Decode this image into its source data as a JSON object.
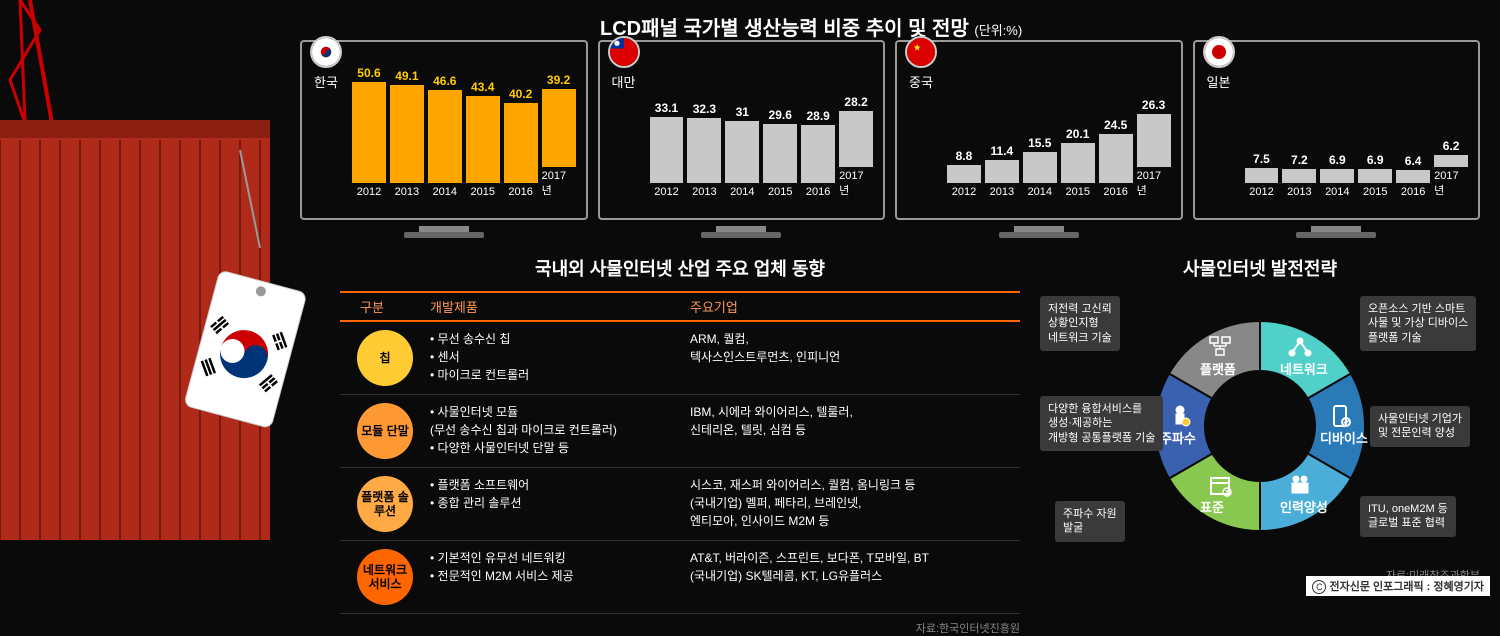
{
  "main_title": "LCD패널 국가별 생산능력 비중 추이 및 전망",
  "main_title_unit": "(단위:%)",
  "charts": [
    {
      "country": "한국",
      "flag": "kr",
      "years": [
        "2012",
        "2013",
        "2014",
        "2015",
        "2016",
        "2017년"
      ],
      "values": [
        50.6,
        49.1,
        46.6,
        43.4,
        40.2,
        39.2
      ],
      "bar_color": "#ffa500",
      "val_color": "#ffcc00",
      "ymax": 55
    },
    {
      "country": "대만",
      "flag": "tw",
      "years": [
        "2012",
        "2013",
        "2014",
        "2015",
        "2016",
        "2017년"
      ],
      "values": [
        33.1,
        32.3,
        31.0,
        29.6,
        28.9,
        28.2
      ],
      "bar_color": "#c8c8c8",
      "val_color": "#ffffff",
      "ymax": 55
    },
    {
      "country": "중국",
      "flag": "cn",
      "years": [
        "2012",
        "2013",
        "2014",
        "2015",
        "2016",
        "2017년"
      ],
      "values": [
        8.8,
        11.4,
        15.5,
        20.1,
        24.5,
        26.3
      ],
      "bar_color": "#c8c8c8",
      "val_color": "#ffffff",
      "ymax": 55
    },
    {
      "country": "일본",
      "flag": "jp",
      "years": [
        "2012",
        "2013",
        "2014",
        "2015",
        "2016",
        "2017년"
      ],
      "values": [
        7.5,
        7.2,
        6.9,
        6.9,
        6.4,
        6.2
      ],
      "bar_color": "#c8c8c8",
      "val_color": "#ffffff",
      "ymax": 55
    }
  ],
  "iot_table": {
    "title": "국내외 사물인터넷 산업 주요 업체 동향",
    "headers": [
      "구분",
      "개발제품",
      "주요기업"
    ],
    "rows": [
      {
        "badge": "칩",
        "badge_color": "#ffcc33",
        "products": "• 무선 송수신 칩\n• 센서\n• 마이크로 컨트롤러",
        "companies": "ARM, 퀄컴,\n텍사스인스트루먼츠, 인피니언"
      },
      {
        "badge": "모듈\n단말",
        "badge_color": "#ff9933",
        "products": "• 사물인터넷 모듈\n   (무선 송수신 칩과 마이크로 컨트롤러)\n• 다양한 사물인터넷 단말 등",
        "companies": "IBM, 시에라 와이어리스, 텔룰러,\n신테리온, 텔릿, 심컴 등"
      },
      {
        "badge": "플랫폼\n솔루션",
        "badge_color": "#ffaa44",
        "products": "• 플랫폼 소프트웨어\n• 종합 관리 솔루션",
        "companies": "시스코, 재스퍼 와이어리스, 퀄컴, 옴니링크 등\n(국내기업) 멜퍼, 페타리, 브레인넷,\n               엔티모아, 인사이드 M2M 등"
      },
      {
        "badge": "네트워크\n서비스",
        "badge_color": "#ff6600",
        "products": "• 기본적인 유무선 네트워킹\n• 전문적인 M2M 서비스 제공",
        "companies": "AT&T, 버라이즌, 스프린트, 보다폰, T모바일, BT\n(국내기업) SK텔레콤, KT, LG유플러스"
      }
    ],
    "source": "자료:한국인터넷진흥원"
  },
  "donut": {
    "title": "사물인터넷 발전전략",
    "segments": [
      {
        "label": "네트워크",
        "color": "#50d0c8",
        "angle_start": -90,
        "angle_end": -30,
        "box": "저전력 고신뢰\n상황인지형\n네트워크 기술",
        "box_pos": "tl",
        "icon": "network"
      },
      {
        "label": "디바이스",
        "color": "#2a7ab8",
        "angle_start": -30,
        "angle_end": 30,
        "box": "오픈소스 기반 스마트\n사물 및 가상 디바이스\n플랫폼 기술",
        "box_pos": "tr",
        "icon": "device"
      },
      {
        "label": "인력양성",
        "color": "#4aaed8",
        "angle_start": 30,
        "angle_end": 90,
        "box": "사물인터넷 기업가\n및 전문인력 양성",
        "box_pos": "mr",
        "icon": "people"
      },
      {
        "label": "표준",
        "color": "#88c850",
        "angle_start": 90,
        "angle_end": 150,
        "box": "ITU, oneM2M 등\n글로벌 표준 협력",
        "box_pos": "br",
        "icon": "calendar"
      },
      {
        "label": "주파수",
        "color": "#3a60b0",
        "angle_start": 150,
        "angle_end": 210,
        "box": "주파수 자원\n발굴",
        "box_pos": "bl",
        "icon": "badge"
      },
      {
        "label": "플랫폼",
        "color": "#888888",
        "angle_start": 210,
        "angle_end": 270,
        "box": "다양한 융합서비스를\n생성·제공하는\n개방형 공통플랫폼 기술",
        "box_pos": "ml",
        "icon": "platform"
      }
    ],
    "inner_radius": 55,
    "outer_radius": 105,
    "source": "자료:미래창조과학부"
  },
  "footer": "전자신문 인포그래픽 : 정혜영기자"
}
